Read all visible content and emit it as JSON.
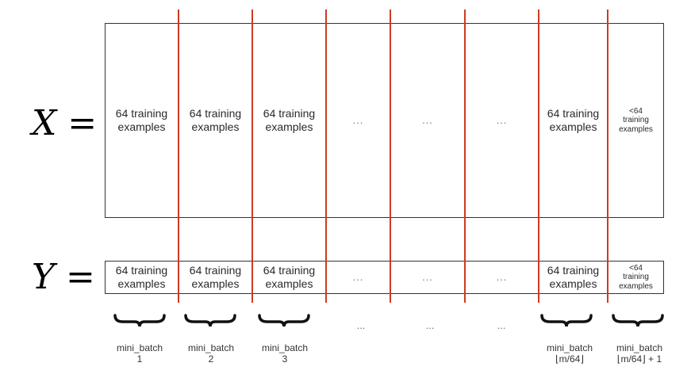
{
  "x_label": "X =",
  "y_label": "Y =",
  "colors": {
    "separator": "#cc3b22",
    "border": "#333333",
    "text": "#2a2a2a"
  },
  "x_cells": [
    {
      "line1": "64 training",
      "line2": "examples"
    },
    {
      "line1": "64 training",
      "line2": "examples"
    },
    {
      "line1": "64 training",
      "line2": "examples"
    },
    {
      "dots": "..."
    },
    {
      "dots": "..."
    },
    {
      "dots": "..."
    },
    {
      "line1": "64 training",
      "line2": "examples"
    },
    {
      "line1": "<64",
      "line2": "training",
      "line3": "examples"
    }
  ],
  "y_cells": [
    {
      "line1": "64 training",
      "line2": "examples"
    },
    {
      "line1": "64 training",
      "line2": "examples"
    },
    {
      "line1": "64 training",
      "line2": "examples"
    },
    {
      "dots": "..."
    },
    {
      "dots": "..."
    },
    {
      "dots": "..."
    },
    {
      "line1": "64 training",
      "line2": "examples"
    },
    {
      "line1": "<64",
      "line2": "training",
      "line3": "examples"
    }
  ],
  "batches": [
    {
      "line1": "mini_batch",
      "line2": "1"
    },
    {
      "line1": "mini_batch",
      "line2": "2"
    },
    {
      "line1": "mini_batch",
      "line2": "3"
    },
    {
      "dots": "..."
    },
    {
      "dots": "..."
    },
    {
      "dots": "..."
    },
    {
      "line1": "mini_batch",
      "line2": "⌊m/64⌋"
    },
    {
      "line1": "mini_batch",
      "line2": "⌊m/64⌋ + 1"
    }
  ]
}
